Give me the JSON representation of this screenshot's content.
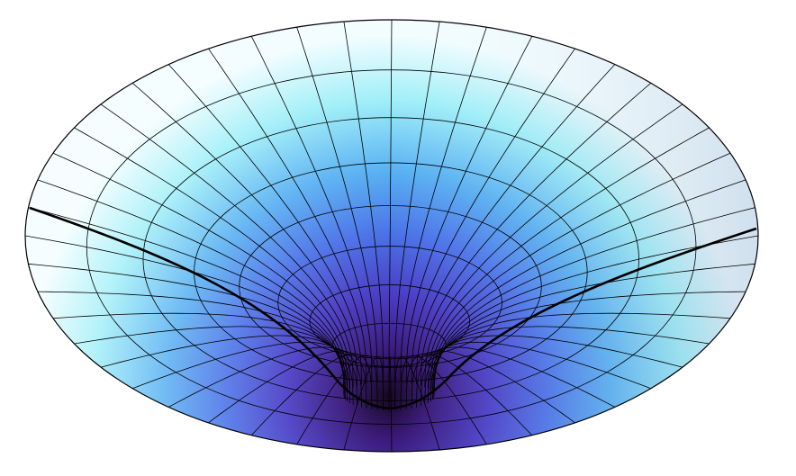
{
  "figure": {
    "subject": "gravity-well-funnel-surface",
    "background_color": "#ffffff",
    "outline_color": "#000000",
    "gradient_colors": {
      "rim_light": "#f2fdff",
      "cyan": "#9feff8",
      "sky_blue": "#58b0f2",
      "blue": "#4b72e8",
      "indigo": "#4a3cc4",
      "violet": "#3a1a7a",
      "throat": "#160822"
    },
    "mesh": {
      "radial_line_count": 48,
      "ring_count": 8
    },
    "highlighted_curve": "geodesic-path"
  }
}
